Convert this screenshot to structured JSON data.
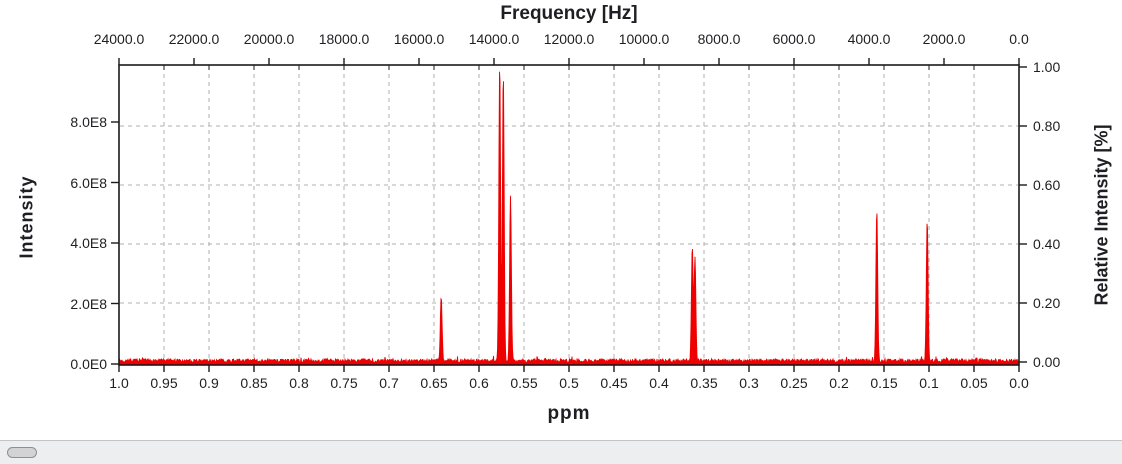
{
  "chart_data": {
    "type": "line",
    "kind": "1d-nmr-spectrum",
    "top_axis_title": "Frequency [Hz]",
    "bottom_axis_title": "ppm",
    "left_axis_title": "Intensity",
    "right_axis_title": "Relative Intensity [%]",
    "line_color": "#ee0000",
    "grid": {
      "visible": true,
      "style": "dashed",
      "color": "#b0b0b0"
    },
    "x_ppm_axis": {
      "max": 1.0,
      "min": 0.0,
      "tick_labels": [
        "1.0",
        "0.95",
        "0.9",
        "0.85",
        "0.8",
        "0.75",
        "0.7",
        "0.65",
        "0.6",
        "0.55",
        "0.5",
        "0.45",
        "0.4",
        "0.35",
        "0.3",
        "0.25",
        "0.2",
        "0.15",
        "0.1",
        "0.05",
        "0.0"
      ]
    },
    "x_frequency_axis": {
      "max": 24000.0,
      "min": 0.0,
      "tick_labels": [
        "24000.0",
        "22000.0",
        "20000.0",
        "18000.0",
        "16000.0",
        "14000.0",
        "12000.0",
        "10000.0",
        "8000.0",
        "6000.0",
        "4000.0",
        "2000.0",
        "0.0"
      ]
    },
    "y_intensity_axis": {
      "min": 0,
      "max_displayed": 990000000.0,
      "tick_labels": [
        "8.0E8",
        "6.0E8",
        "4.0E8",
        "2.0E8",
        "0.0E0"
      ],
      "tick_values": [
        800000000.0,
        600000000.0,
        400000000.0,
        200000000.0,
        0
      ]
    },
    "y_relative_axis": {
      "min": 0.0,
      "max": 1.0,
      "tick_labels": [
        "1.00",
        "0.80",
        "0.60",
        "0.40",
        "0.20",
        "0.00"
      ],
      "tick_values": [
        1.0,
        0.8,
        0.6,
        0.4,
        0.2,
        0.0
      ]
    },
    "noise_band_intensity": 12000000.0,
    "peaks": [
      {
        "ppm": 0.642,
        "frequency_hz": 15408,
        "intensity_e8": 2.15,
        "relative": 0.22
      },
      {
        "ppm": 0.577,
        "frequency_hz": 13848,
        "intensity_e8": 9.85,
        "relative": 1.0
      },
      {
        "ppm": 0.573,
        "frequency_hz": 13752,
        "intensity_e8": 9.45,
        "relative": 0.96
      },
      {
        "ppm": 0.565,
        "frequency_hz": 13560,
        "intensity_e8": 5.45,
        "relative": 0.55
      },
      {
        "ppm": 0.363,
        "frequency_hz": 8712,
        "intensity_e8": 3.75,
        "relative": 0.38
      },
      {
        "ppm": 0.36,
        "frequency_hz": 8640,
        "intensity_e8": 3.35,
        "relative": 0.34
      },
      {
        "ppm": 0.158,
        "frequency_hz": 3792,
        "intensity_e8": 5.0,
        "relative": 0.51
      },
      {
        "ppm": 0.102,
        "frequency_hz": 2448,
        "intensity_e8": 4.65,
        "relative": 0.47
      }
    ]
  },
  "scrollbar": {
    "orientation": "horizontal",
    "thumb_position": "left"
  }
}
